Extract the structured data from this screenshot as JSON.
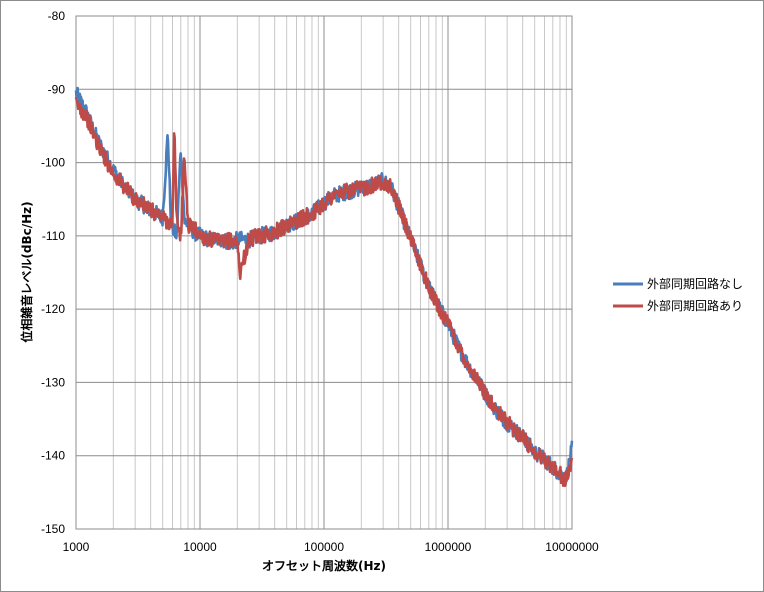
{
  "chart_data": {
    "type": "line",
    "xlabel": "オフセット周波数(Hz)",
    "ylabel": "位相雑音レベル(dBc/Hz)",
    "x_scale": "log",
    "xlim": [
      1000,
      10000000
    ],
    "ylim": [
      -150,
      -80
    ],
    "x_ticks": [
      "1000",
      "10000",
      "100000",
      "1000000",
      "10000000"
    ],
    "y_ticks": [
      "-80",
      "-90",
      "-100",
      "-110",
      "-120",
      "-130",
      "-140",
      "-150"
    ],
    "grid": true,
    "legend_position": "right",
    "series": [
      {
        "name": "外部同期回路なし",
        "color": "#4a7ebb",
        "x": [
          1000,
          1200,
          1500,
          2000,
          2500,
          3000,
          4000,
          5000,
          5500,
          5800,
          6000,
          6500,
          7000,
          7500,
          8000,
          9000,
          10000,
          12000,
          15000,
          18000,
          20000,
          25000,
          30000,
          40000,
          50000,
          60000,
          80000,
          100000,
          120000,
          150000,
          200000,
          250000,
          300000,
          350000,
          400000,
          500000,
          600000,
          700000,
          800000,
          1000000,
          1200000,
          1500000,
          2000000,
          2500000,
          3000000,
          4000000,
          5000000,
          6000000,
          7000000,
          8000000,
          9000000,
          10000000
        ],
        "y": [
          -90.5,
          -93,
          -97,
          -101,
          -103.5,
          -105,
          -106.5,
          -107.5,
          -96,
          -107,
          -109,
          -110,
          -98,
          -108,
          -108.5,
          -109.5,
          -110,
          -110.5,
          -110.5,
          -111,
          -110.5,
          -110.5,
          -110,
          -109.5,
          -108.5,
          -108,
          -107,
          -105.5,
          -104.5,
          -104,
          -103.5,
          -103,
          -102.5,
          -103.5,
          -106,
          -110.5,
          -114,
          -117,
          -119,
          -122,
          -125,
          -128,
          -131.5,
          -134,
          -135.5,
          -137.5,
          -139.5,
          -140.5,
          -141.5,
          -142.5,
          -143,
          -139
        ]
      },
      {
        "name": "外部同期回路あり",
        "color": "#be4b48",
        "x": [
          1000,
          1200,
          1500,
          2000,
          2500,
          3000,
          4000,
          5000,
          6000,
          6200,
          6500,
          7000,
          7500,
          8000,
          9000,
          10000,
          12000,
          15000,
          18000,
          20000,
          21000,
          25000,
          30000,
          40000,
          50000,
          60000,
          80000,
          100000,
          120000,
          150000,
          200000,
          250000,
          300000,
          350000,
          400000,
          500000,
          600000,
          700000,
          800000,
          1000000,
          1200000,
          1500000,
          2000000,
          2500000,
          3000000,
          4000000,
          5000000,
          6000000,
          7000000,
          8000000,
          9000000,
          10000000
        ],
        "y": [
          -92,
          -93.5,
          -97.5,
          -101.5,
          -103.5,
          -105,
          -106.5,
          -107.5,
          -108.5,
          -95.5,
          -108,
          -110,
          -99,
          -108.5,
          -109,
          -110,
          -110.5,
          -111,
          -110.5,
          -111,
          -115,
          -110.5,
          -110,
          -109.5,
          -108.5,
          -108,
          -107,
          -105.5,
          -104.5,
          -104,
          -103.5,
          -103,
          -102.5,
          -103.5,
          -106,
          -110.5,
          -114,
          -117,
          -119,
          -122,
          -125,
          -128,
          -131.5,
          -134,
          -135.5,
          -137.5,
          -139.5,
          -140.5,
          -141.5,
          -142.5,
          -143.5,
          -140.5
        ]
      }
    ]
  }
}
